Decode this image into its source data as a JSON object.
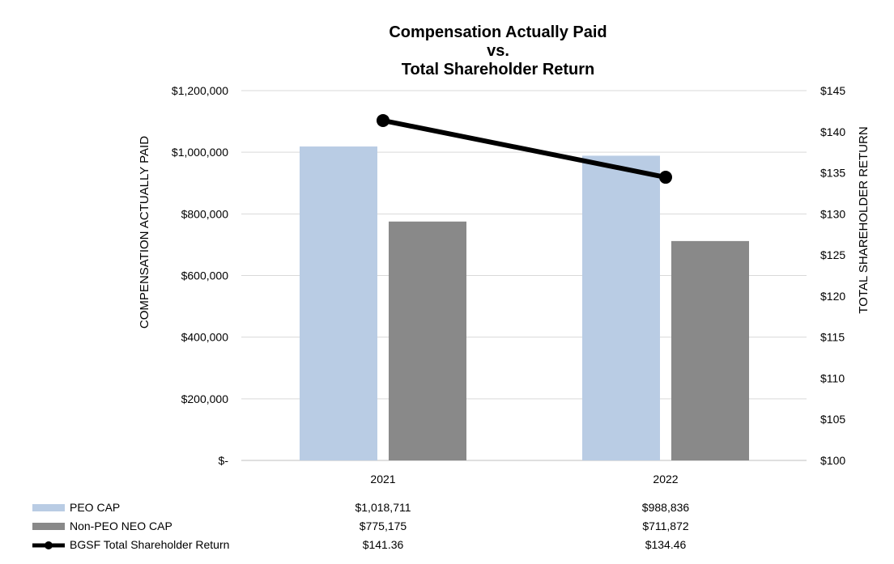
{
  "chart_data": {
    "type": "bar",
    "title_lines": [
      "Compensation Actually Paid",
      "vs.",
      "Total Shareholder Return"
    ],
    "categories": [
      "2021",
      "2022"
    ],
    "y_left": {
      "label": "COMPENSATION ACTUALLY PAID",
      "min": 0,
      "max": 1200000,
      "ticks": [
        0,
        200000,
        400000,
        600000,
        800000,
        1000000,
        1200000
      ],
      "tick_labels": [
        "$-",
        "$200,000",
        "$400,000",
        "$600,000",
        "$800,000",
        "$1,000,000",
        "$1,200,000"
      ]
    },
    "y_right": {
      "label": "TOTAL SHAREHOLDER RETURN",
      "min": 100,
      "max": 145,
      "ticks": [
        100,
        105,
        110,
        115,
        120,
        125,
        130,
        135,
        140,
        145
      ],
      "tick_labels": [
        "$100",
        "$105",
        "$110",
        "$115",
        "$120",
        "$125",
        "$130",
        "$135",
        "$140",
        "$145"
      ]
    },
    "grid": true,
    "legend_placement": "bottom data table",
    "series": [
      {
        "name": "PEO CAP",
        "type": "bar",
        "axis": "left",
        "color": "#b9cce4",
        "values": [
          1018711,
          988836
        ],
        "value_labels": [
          "$1,018,711",
          "$988,836"
        ]
      },
      {
        "name": "Non-PEO NEO CAP",
        "type": "bar",
        "axis": "left",
        "color": "#898989",
        "values": [
          775175,
          711872
        ],
        "value_labels": [
          "$775,175",
          "$711,872"
        ]
      },
      {
        "name": "BGSF Total Shareholder Return",
        "type": "line",
        "axis": "right",
        "color": "#000000",
        "values": [
          141.36,
          134.46
        ],
        "value_labels": [
          "$141.36",
          "$134.46"
        ]
      }
    ]
  }
}
